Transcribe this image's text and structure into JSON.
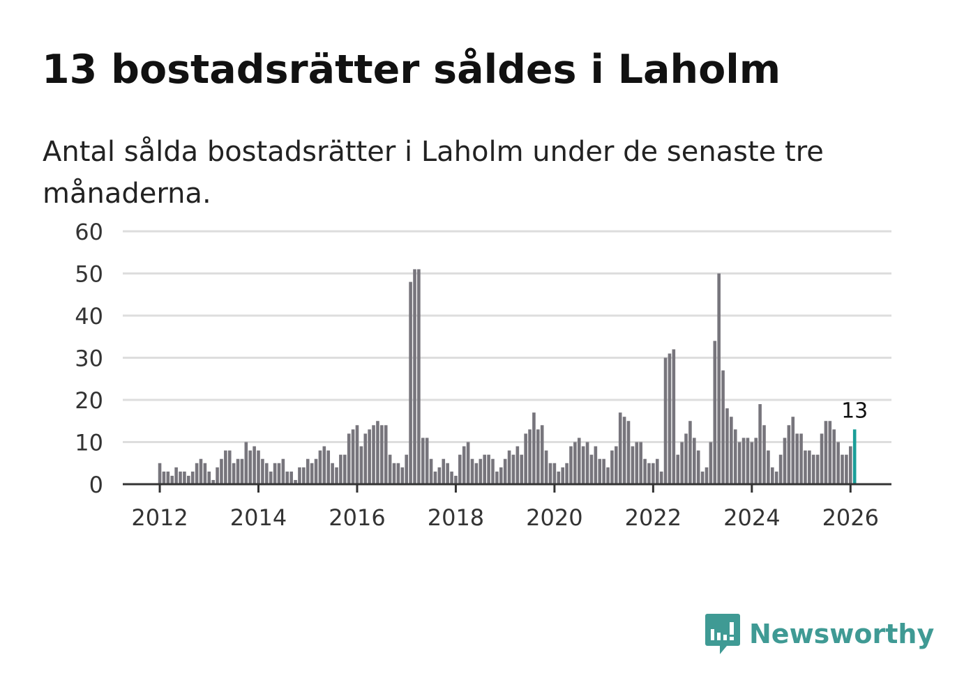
{
  "title": "13 bostadsrätter såldes i Laholm",
  "subtitle": "Antal sålda bostadsrätter i Laholm under de senaste tre månaderna.",
  "brand": {
    "name": "Newsworthy",
    "color": "#3f9a94"
  },
  "colors": {
    "bar": "#77757c",
    "highlight": "#1a9e98",
    "grid": "#dddddd",
    "axis": "#333333",
    "text": "#333333"
  },
  "chart_data": {
    "type": "bar",
    "title": "",
    "xlabel": "",
    "ylabel": "",
    "ylim": [
      0,
      60
    ],
    "yticks": [
      0,
      10,
      20,
      30,
      40,
      50,
      60
    ],
    "y_tick_labels": [
      "0",
      "10",
      "20",
      "30",
      "40",
      "50",
      "60"
    ],
    "xlim": [
      2011.25,
      2026.83
    ],
    "x_tick_values": [
      2012,
      2014,
      2016,
      2018,
      2020,
      2022,
      2024,
      2026
    ],
    "x_tick_labels": [
      "2012",
      "2014",
      "2016",
      "2018",
      "2020",
      "2022",
      "2024",
      "2026"
    ],
    "start": {
      "year": 2012,
      "month": 1
    },
    "frequency": "monthly",
    "values": [
      5,
      3,
      3,
      2,
      4,
      3,
      3,
      2,
      3,
      5,
      6,
      5,
      3,
      1,
      4,
      6,
      8,
      8,
      5,
      6,
      6,
      10,
      8,
      9,
      8,
      6,
      5,
      3,
      5,
      5,
      6,
      3,
      3,
      1,
      4,
      4,
      6,
      5,
      6,
      8,
      9,
      8,
      5,
      4,
      7,
      7,
      12,
      13,
      14,
      9,
      12,
      13,
      14,
      15,
      14,
      14,
      7,
      5,
      5,
      4,
      7,
      48,
      51,
      51,
      11,
      11,
      6,
      3,
      4,
      6,
      5,
      3,
      2,
      7,
      9,
      10,
      6,
      5,
      6,
      7,
      7,
      6,
      3,
      4,
      6,
      8,
      7,
      9,
      7,
      12,
      13,
      17,
      13,
      14,
      8,
      5,
      5,
      3,
      4,
      5,
      9,
      10,
      11,
      9,
      10,
      7,
      9,
      6,
      6,
      4,
      8,
      9,
      17,
      16,
      15,
      9,
      10,
      10,
      6,
      5,
      5,
      6,
      3,
      30,
      31,
      32,
      7,
      10,
      12,
      15,
      11,
      8,
      3,
      4,
      10,
      34,
      50,
      27,
      18,
      16,
      13,
      10,
      11,
      11,
      10,
      11,
      19,
      14,
      8,
      4,
      3,
      7,
      11,
      14,
      16,
      12,
      12,
      8,
      8,
      7,
      7,
      12,
      15,
      15,
      13,
      10,
      7,
      7,
      9,
      13
    ],
    "highlight_last": true,
    "annotation": {
      "label": "13",
      "value": 13
    }
  }
}
